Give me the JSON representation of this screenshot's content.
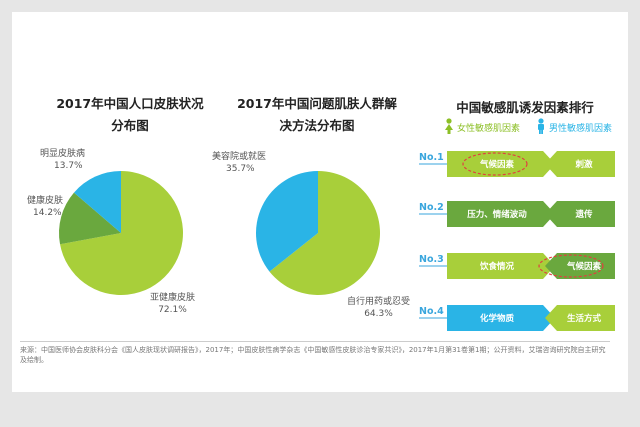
{
  "colors": {
    "blue": "#2ab4e6",
    "green": "#a8cf3a",
    "darkgreen": "#6aa83e",
    "legend_female": "#8cbf26",
    "legend_male": "#2ab4e6",
    "accent_no": "#3aa6dd",
    "dash_red": "#e04040"
  },
  "chart_data": [
    {
      "type": "pie",
      "title": "2017年中国人口皮肤状况分布图",
      "title_lines": [
        "2017年中国人口皮肤状况",
        "分布图"
      ],
      "slices": [
        {
          "label": "亚健康皮肤",
          "value": 72.1,
          "value_text": "72.1%",
          "color": "#a8cf3a"
        },
        {
          "label": "健康皮肤",
          "value": 14.2,
          "value_text": "14.2%",
          "color": "#6aa83e"
        },
        {
          "label": "明显皮肤病",
          "value": 13.7,
          "value_text": "13.7%",
          "color": "#2ab4e6"
        }
      ]
    },
    {
      "type": "pie",
      "title": "2017年中国问题肌肤人群解决方法分布图",
      "title_lines": [
        "2017年中国问题肌肤人群解",
        "决方法分布图"
      ],
      "slices": [
        {
          "label": "自行用药或忍受",
          "value": 64.3,
          "value_text": "64.3%",
          "color": "#a8cf3a"
        },
        {
          "label": "美容院或就医",
          "value": 35.7,
          "value_text": "35.7%",
          "color": "#2ab4e6"
        }
      ]
    }
  ],
  "ranking": {
    "title": "中国敏感肌诱发因素排行",
    "legend_female": "女性敏感肌因素",
    "legend_male": "男性敏感肌因素",
    "rows": [
      {
        "no": "No.1",
        "female": "气候因素",
        "male": "刺激"
      },
      {
        "no": "No.2",
        "female": "压力、情绪波动",
        "male": "遗传"
      },
      {
        "no": "No.3",
        "female": "饮食情况",
        "male": "气候因素"
      },
      {
        "no": "No.4",
        "female": "化学物质",
        "male": "生活方式"
      }
    ]
  },
  "source": "来源：中国医师协会皮肤科分会《国人皮肤现状调研报告》，2017年；中国皮肤性病学杂志《中国敏感性皮肤诊治专家共识》，2017年1月第31卷第1期；公开资料，艾瑞咨询研究院自主研究及绘制。"
}
